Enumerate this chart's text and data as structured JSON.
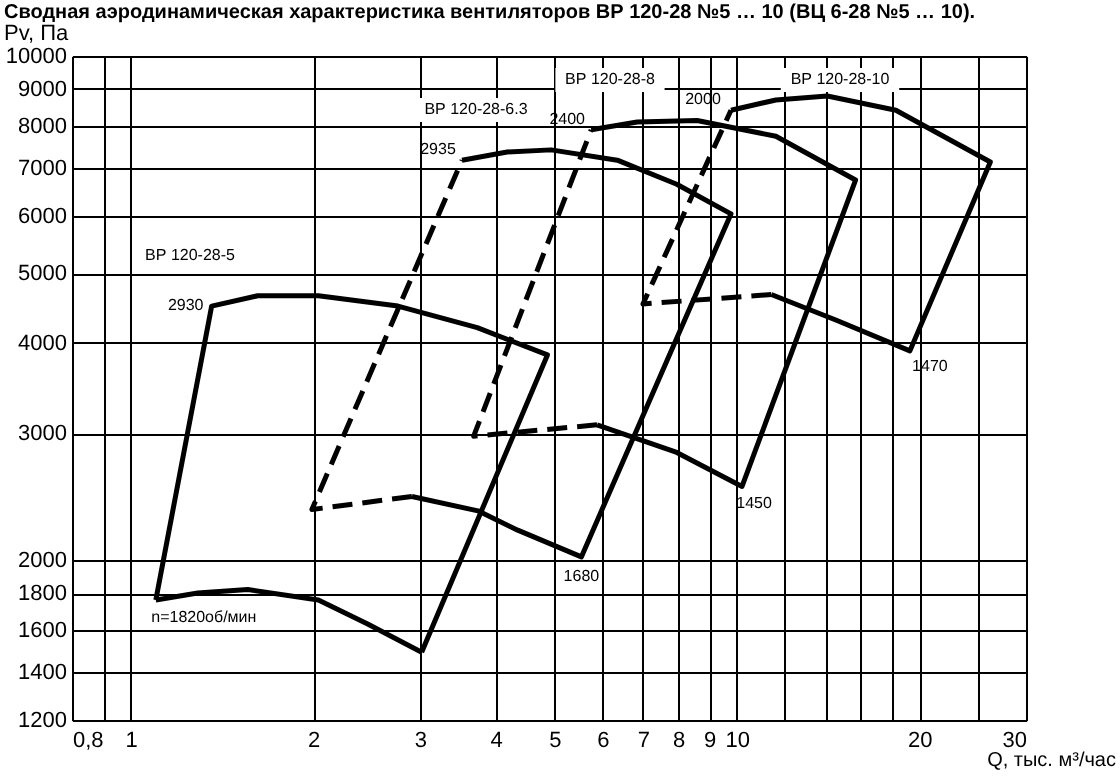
{
  "chart_data": {
    "type": "line",
    "title": "Сводная аэродинамическая характеристика вентиляторов ВР 120-28 №5 … 10 (ВЦ 6-28 №5 … 10).",
    "xlabel": "Q, тыс. м³/час",
    "ylabel": "Pv, Па",
    "log": "xy",
    "grid": true,
    "marker": "none",
    "xlim": [
      0.8,
      30
    ],
    "ylim": [
      1200,
      10000
    ],
    "xticks": [
      {
        "value": 0.8,
        "label": "0,8"
      },
      {
        "value": 0.9,
        "label": null
      },
      1,
      2,
      3,
      4,
      5,
      6,
      7,
      8,
      9,
      10,
      {
        "value": 12,
        "label": null
      },
      {
        "value": 14,
        "label": null
      },
      {
        "value": 16,
        "label": null
      },
      {
        "value": 18,
        "label": null
      },
      20,
      {
        "value": 25,
        "label": null
      },
      30
    ],
    "yticks": [
      1200,
      1400,
      1600,
      1800,
      2000,
      3000,
      4000,
      5000,
      6000,
      7000,
      8000,
      9000,
      10000
    ],
    "series": [
      {
        "color": "#000000",
        "line_style": "solid",
        "x": [
          1.1,
          1.36,
          1.62,
          2.04,
          2.76,
          3.73,
          4.87,
          3.02
        ],
        "values": [
          1760,
          4500,
          4650,
          4650,
          4500,
          4200,
          3850,
          1490
        ]
      },
      {
        "color": "#000000",
        "line_style": "solid",
        "x": [
          1.1,
          1.29,
          1.56,
          2.04,
          2.46,
          3.02
        ],
        "values": [
          1760,
          1800,
          1820,
          1760,
          1630,
          1490
        ]
      },
      {
        "color": "#000000",
        "line_style": "dashed",
        "x": [
          2.91,
          1.99,
          3.52
        ],
        "values": [
          2450,
          2350,
          7170
        ]
      },
      {
        "color": "#000000",
        "line_style": "solid",
        "x": [
          3.52,
          4.18,
          4.94,
          6.35,
          7.96,
          9.78,
          5.54,
          4.35,
          3.74,
          2.91
        ],
        "values": [
          7170,
          7360,
          7410,
          7170,
          6640,
          6040,
          2020,
          2200,
          2340,
          2450
        ]
      },
      {
        "color": "#000000",
        "line_style": "dashed",
        "x": [
          5.88,
          3.68,
          5.75
        ],
        "values": [
          3080,
          2970,
          7900
        ]
      },
      {
        "color": "#000000",
        "line_style": "solid",
        "x": [
          5.75,
          6.85,
          8.6,
          11.6,
          15.7,
          10.2,
          7.96,
          5.88
        ],
        "values": [
          7900,
          8100,
          8140,
          7740,
          6730,
          2530,
          2820,
          3080
        ]
      },
      {
        "color": "#000000",
        "line_style": "dashed",
        "x": [
          11.4,
          7.0,
          9.78
        ],
        "values": [
          4670,
          4530,
          8410
        ]
      },
      {
        "color": "#000000",
        "line_style": "solid",
        "x": [
          9.78,
          11.6,
          14.1,
          18.3,
          26.2,
          19.3,
          14.6,
          11.4
        ],
        "values": [
          8410,
          8690,
          8800,
          8410,
          7130,
          3900,
          4300,
          4670
        ]
      }
    ],
    "annotations": [
      "ВР 120-28-5",
      "ВР 120-28-6.3",
      "ВР 120-28-8",
      "ВР 120-28-10",
      {
        "text": "2930",
        "x": 1.36,
        "y": 4500
      },
      {
        "text": "2935",
        "x": 3.52,
        "y": 7170
      },
      {
        "text": "2400",
        "x": 5.75,
        "y": 7900
      },
      {
        "text": "2000",
        "x": 9.78,
        "y": 8410
      },
      {
        "text": "n=1820об/мин",
        "x": 1.1,
        "y": 1760
      },
      {
        "text": "1680",
        "x": 5.54,
        "y": 2020
      },
      {
        "text": "1450",
        "x": 10.2,
        "y": 2530
      },
      {
        "text": "1470",
        "x": 19.3,
        "y": 3900
      }
    ]
  }
}
